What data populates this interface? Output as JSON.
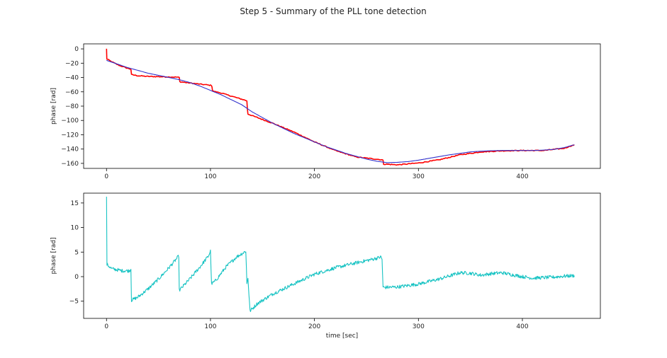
{
  "figure": {
    "suptitle": "Step 5 - Summary of the PLL tone detection"
  },
  "chart_data": [
    {
      "type": "line",
      "ylabel": "phase [rad]",
      "xlabel": "",
      "xlim": [
        -22,
        475
      ],
      "ylim": [
        -167,
        7
      ],
      "xticks": [
        0,
        100,
        200,
        300,
        400
      ],
      "yticks": [
        0,
        -20,
        -40,
        -60,
        -80,
        -100,
        -120,
        -140,
        -160
      ],
      "grid": false,
      "series": [
        {
          "color": "#ff0000",
          "points": [
            [
              0,
              0
            ],
            [
              0.3,
              -14
            ],
            [
              5,
              -18
            ],
            [
              12,
              -23
            ],
            [
              20,
              -27
            ],
            [
              23.5,
              -28.5
            ],
            [
              24,
              -36
            ],
            [
              30,
              -37.5
            ],
            [
              40,
              -38.5
            ],
            [
              55,
              -39
            ],
            [
              68,
              -39.5
            ],
            [
              70,
              -40
            ],
            [
              70.5,
              -46
            ],
            [
              85,
              -48.5
            ],
            [
              101,
              -51
            ],
            [
              101.5,
              -53
            ],
            [
              102,
              -59
            ],
            [
              110,
              -61.5
            ],
            [
              120,
              -66
            ],
            [
              134,
              -72
            ],
            [
              135,
              -73
            ],
            [
              135.5,
              -84
            ],
            [
              136,
              -91
            ],
            [
              145,
              -96
            ],
            [
              160,
              -104
            ],
            [
              180,
              -116
            ],
            [
              200,
              -130
            ],
            [
              220,
              -142
            ],
            [
              240,
              -151
            ],
            [
              265,
              -155
            ],
            [
              266,
              -156
            ],
            [
              266.5,
              -161
            ],
            [
              280,
              -162
            ],
            [
              300,
              -159.5
            ],
            [
              320,
              -155
            ],
            [
              340,
              -148
            ],
            [
              360,
              -144
            ],
            [
              380,
              -142.5
            ],
            [
              400,
              -142
            ],
            [
              420,
              -142
            ],
            [
              440,
              -139
            ],
            [
              450,
              -134
            ]
          ]
        },
        {
          "color": "#3333cc",
          "points": [
            [
              0,
              -16
            ],
            [
              10,
              -21
            ],
            [
              20,
              -26
            ],
            [
              30,
              -30
            ],
            [
              40,
              -34
            ],
            [
              50,
              -37
            ],
            [
              60,
              -40
            ],
            [
              70,
              -43
            ],
            [
              80,
              -47
            ],
            [
              90,
              -52
            ],
            [
              100,
              -58
            ],
            [
              110,
              -64
            ],
            [
              120,
              -71
            ],
            [
              130,
              -78
            ],
            [
              140,
              -88
            ],
            [
              150,
              -96
            ],
            [
              160,
              -104
            ],
            [
              170,
              -111
            ],
            [
              180,
              -118
            ],
            [
              190,
              -124
            ],
            [
              200,
              -130
            ],
            [
              210,
              -136
            ],
            [
              220,
              -141
            ],
            [
              230,
              -146
            ],
            [
              240,
              -150
            ],
            [
              250,
              -154
            ],
            [
              260,
              -157
            ],
            [
              270,
              -159
            ],
            [
              280,
              -158.5
            ],
            [
              290,
              -157.5
            ],
            [
              300,
              -155.5
            ],
            [
              310,
              -153
            ],
            [
              320,
              -150.5
            ],
            [
              330,
              -148
            ],
            [
              340,
              -146
            ],
            [
              350,
              -144
            ],
            [
              360,
              -143
            ],
            [
              370,
              -142.3
            ],
            [
              380,
              -142
            ],
            [
              390,
              -142
            ],
            [
              400,
              -142
            ],
            [
              410,
              -142
            ],
            [
              420,
              -141.5
            ],
            [
              430,
              -140.5
            ],
            [
              440,
              -138
            ],
            [
              450,
              -134
            ]
          ]
        }
      ]
    },
    {
      "type": "line",
      "ylabel": "phase [rad]",
      "xlabel": "time [sec]",
      "xlim": [
        -22,
        475
      ],
      "ylim": [
        -8.5,
        17
      ],
      "xticks": [
        0,
        100,
        200,
        300,
        400
      ],
      "yticks": [
        15,
        10,
        5,
        0,
        -5
      ],
      "grid": false,
      "series": [
        {
          "color": "#17c3c3",
          "points": [
            [
              0,
              16
            ],
            [
              0.4,
              2.5
            ],
            [
              5,
              1.6
            ],
            [
              15,
              1.2
            ],
            [
              22,
              1.2
            ],
            [
              23.5,
              1.6
            ],
            [
              24,
              -4.8
            ],
            [
              30,
              -4.2
            ],
            [
              40,
              -2.5
            ],
            [
              50,
              -0.5
            ],
            [
              60,
              1.8
            ],
            [
              68,
              3.8
            ],
            [
              69.5,
              4.2
            ],
            [
              70,
              -2.8
            ],
            [
              80,
              -0.5
            ],
            [
              90,
              2
            ],
            [
              98,
              4.2
            ],
            [
              100,
              5.2
            ],
            [
              101,
              -1.5
            ],
            [
              105,
              -0.8
            ],
            [
              115,
              2
            ],
            [
              125,
              4
            ],
            [
              134,
              5.2
            ],
            [
              135,
              -1.5
            ],
            [
              136,
              -0.2
            ],
            [
              138,
              -7
            ],
            [
              145,
              -5.5
            ],
            [
              160,
              -3.5
            ],
            [
              180,
              -1.5
            ],
            [
              200,
              0.5
            ],
            [
              220,
              1.8
            ],
            [
              240,
              2.8
            ],
            [
              255,
              3.5
            ],
            [
              264,
              4
            ],
            [
              265,
              3.5
            ],
            [
              266,
              -2.2
            ],
            [
              280,
              -2.1
            ],
            [
              300,
              -1.5
            ],
            [
              320,
              -0.5
            ],
            [
              340,
              0.8
            ],
            [
              350,
              0.7
            ],
            [
              360,
              0.3
            ],
            [
              370,
              0.6
            ],
            [
              380,
              0.8
            ],
            [
              390,
              0.4
            ],
            [
              400,
              0
            ],
            [
              410,
              -0.3
            ],
            [
              420,
              -0.2
            ],
            [
              430,
              -0.1
            ],
            [
              440,
              0.1
            ],
            [
              450,
              0.2
            ]
          ]
        }
      ]
    }
  ]
}
